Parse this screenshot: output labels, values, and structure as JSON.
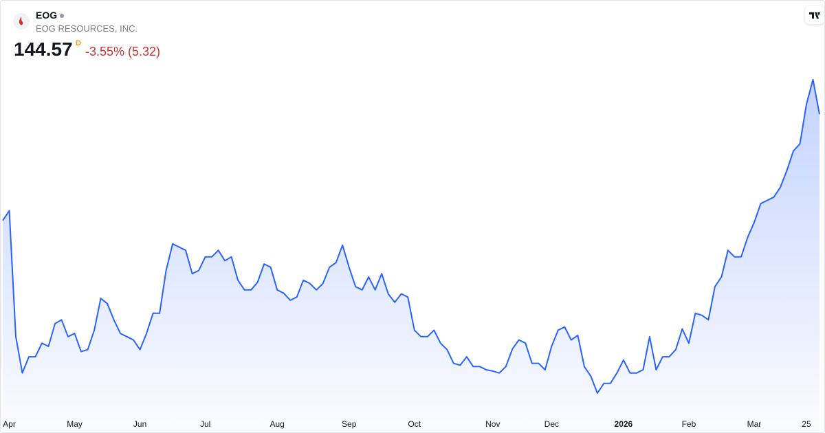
{
  "header": {
    "ticker": "EOG",
    "name": "EOG RESOURCES, INC.",
    "price": "144.57",
    "interval": "D",
    "change": "-3.55% (5.32)"
  },
  "chart_data": {
    "type": "area",
    "color": "#2962ff",
    "values": [
      128.2,
      129.7,
      110.3,
      104.7,
      107.2,
      107.2,
      109.3,
      108.8,
      112.3,
      112.9,
      110.3,
      110.8,
      108.0,
      108.3,
      111.3,
      116.2,
      115.4,
      112.9,
      110.8,
      110.3,
      109.8,
      108.3,
      110.8,
      113.9,
      113.9,
      120.5,
      124.6,
      124.1,
      123.6,
      120.0,
      120.5,
      122.6,
      122.6,
      123.6,
      122.0,
      122.6,
      119.0,
      117.5,
      117.5,
      118.7,
      121.5,
      121.0,
      117.5,
      117.0,
      115.9,
      116.4,
      119.0,
      118.5,
      117.5,
      118.5,
      121.0,
      121.7,
      124.4,
      121.0,
      118.0,
      117.5,
      119.5,
      117.5,
      120.0,
      116.9,
      115.6,
      116.9,
      116.4,
      111.3,
      110.3,
      110.3,
      111.3,
      109.3,
      108.3,
      106.2,
      105.9,
      107.2,
      105.7,
      105.7,
      105.2,
      105.0,
      104.7,
      105.7,
      108.4,
      109.8,
      109.3,
      106.2,
      106.2,
      105.2,
      108.8,
      111.3,
      111.8,
      109.8,
      110.5,
      105.7,
      104.2,
      101.6,
      103.1,
      103.1,
      104.7,
      106.7,
      104.7,
      104.7,
      105.2,
      110.3,
      105.2,
      107.2,
      107.2,
      108.3,
      111.5,
      109.3,
      113.9,
      113.6,
      112.9,
      118.0,
      119.5,
      123.6,
      122.6,
      122.6,
      125.6,
      127.9,
      130.8,
      131.3,
      131.8,
      133.3,
      135.9,
      138.9,
      140.0,
      146.1,
      149.9,
      144.57
    ],
    "xlim": [
      0,
      125
    ],
    "ylim": [
      98,
      152
    ],
    "xticks": [
      {
        "value": 1,
        "label": "Apr"
      },
      {
        "value": 11,
        "label": "May"
      },
      {
        "value": 21,
        "label": "Jun"
      },
      {
        "value": 31,
        "label": "Jul"
      },
      {
        "value": 42,
        "label": "Aug"
      },
      {
        "value": 53,
        "label": "Sep"
      },
      {
        "value": 63,
        "label": "Oct"
      },
      {
        "value": 75,
        "label": "Nov"
      },
      {
        "value": 84,
        "label": "Dec"
      },
      {
        "value": 95,
        "label": "2026"
      },
      {
        "value": 105,
        "label": "Feb"
      },
      {
        "value": 115,
        "label": "Mar"
      },
      {
        "value": 123,
        "label": "25"
      }
    ]
  }
}
